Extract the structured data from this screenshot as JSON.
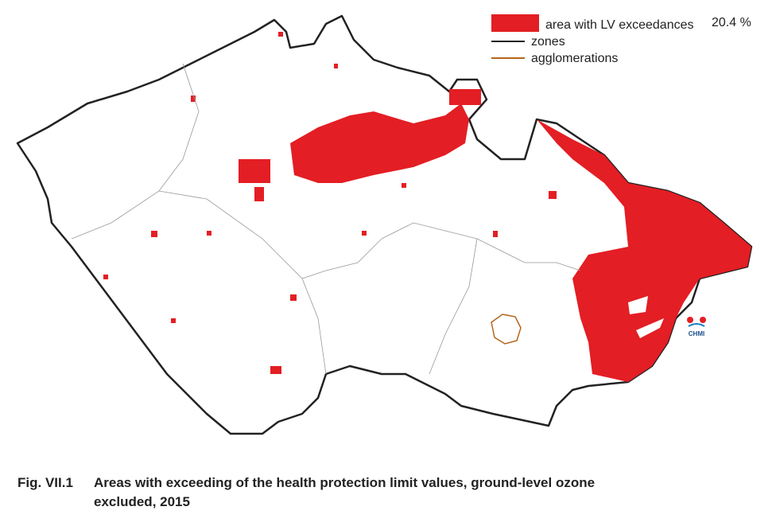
{
  "legend": {
    "items": [
      {
        "label": "area with LV exceedances"
      },
      {
        "label": "zones"
      },
      {
        "label": "agglomerations"
      }
    ],
    "share": "20.4 %"
  },
  "logo": {
    "label": "CHMI"
  },
  "caption": {
    "number": "Fig. VII.1",
    "lines": [
      "Areas with exceeding of the health protection limit values, ground-level ozone",
      "excluded, 2015"
    ]
  }
}
